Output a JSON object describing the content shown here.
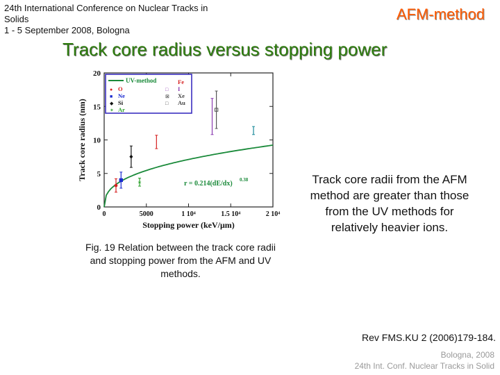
{
  "header": {
    "conference": "24th International Conference on Nuclear Tracks in\nSolids\n 1 - 5 September 2008, Bologna",
    "method": "AFM-method"
  },
  "slide_title": "Track core radius versus stopping power",
  "caption": "Fig. 19 Relation between the track core radii and stopping power from the AFM and UV methods.",
  "note": "Track core radii from the AFM method are greater than those from the UV methods for relatively heavier ions.",
  "reference": "Rev FMS.KU 2 (2006)179-184.",
  "footer": {
    "line1": "Bologna, 2008",
    "line2": "24th Int. Conf. Nuclear Tracks in Solid"
  },
  "colors": {
    "title": "#2e7d0e",
    "method": "#ff5a00",
    "fit": "#1a8a3a",
    "box": "#3a2fc0"
  },
  "chart_data": {
    "type": "scatter",
    "xlabel": "Stopping power (keV/μm)",
    "ylabel": "Track core radius (nm)",
    "xlim": [
      0,
      20000
    ],
    "ylim": [
      0,
      20
    ],
    "xticks": [
      {
        "value": 0,
        "label": "0"
      },
      {
        "value": 5000,
        "label": "5000"
      },
      {
        "value": 10000,
        "label": "1 10⁴"
      },
      {
        "value": 15000,
        "label": "1.5 10⁴"
      },
      {
        "value": 20000,
        "label": "2 10⁴"
      }
    ],
    "yticks": [
      0,
      5,
      10,
      15,
      20
    ],
    "legend_position": "top-left",
    "legend": {
      "fit_label": "UV-method",
      "left": [
        {
          "symbol": "●",
          "label": "O",
          "color": "#d62020"
        },
        {
          "symbol": "■",
          "label": "Ne",
          "color": "#1a2ad0"
        },
        {
          "symbol": "◆",
          "label": "Si",
          "color": "#111111"
        },
        {
          "symbol": "✶",
          "label": "Ar",
          "color": "#2aa02a"
        }
      ],
      "right": [
        {
          "symbol": "",
          "label": "Fe",
          "color": "#d62020"
        },
        {
          "symbol": "□",
          "label": "I",
          "color": "#8a3ab0"
        },
        {
          "symbol": "⊠",
          "label": "Xe",
          "color": "#444444"
        },
        {
          "symbol": "□",
          "label": "Au",
          "color": "#444444"
        }
      ]
    },
    "fit": {
      "label": "r = 0.214(dE/dx)",
      "exponent": "0.38",
      "coefficient": 0.214,
      "power": 0.38
    },
    "series": [
      {
        "name": "O",
        "x": 1400,
        "y": 3.2,
        "yerr": 1.0,
        "color": "#d62020",
        "marker": "circle"
      },
      {
        "name": "Ne",
        "x": 2000,
        "y": 4.0,
        "yerr": 1.2,
        "color": "#1a2ad0",
        "marker": "square"
      },
      {
        "name": "Si",
        "x": 3200,
        "y": 7.5,
        "yerr": 1.6,
        "color": "#111111",
        "marker": "diamond"
      },
      {
        "name": "Ar",
        "x": 4200,
        "y": 3.7,
        "yerr": 0.6,
        "color": "#2aa02a",
        "marker": "star"
      },
      {
        "name": "Fe",
        "x": 6200,
        "y": 9.7,
        "yerr": 1.0,
        "color": "#d62020",
        "marker": "none"
      },
      {
        "name": "I",
        "x": 12800,
        "y": 13.5,
        "yerr": 2.7,
        "color": "#8a3ab0",
        "marker": "none"
      },
      {
        "name": "Xe",
        "x": 13300,
        "y": 14.5,
        "yerr": 2.8,
        "color": "#555555",
        "marker": "square"
      },
      {
        "name": "Au",
        "x": 17700,
        "y": 11.4,
        "yerr": 0.6,
        "color": "#1a8a9a",
        "marker": "none"
      }
    ]
  }
}
